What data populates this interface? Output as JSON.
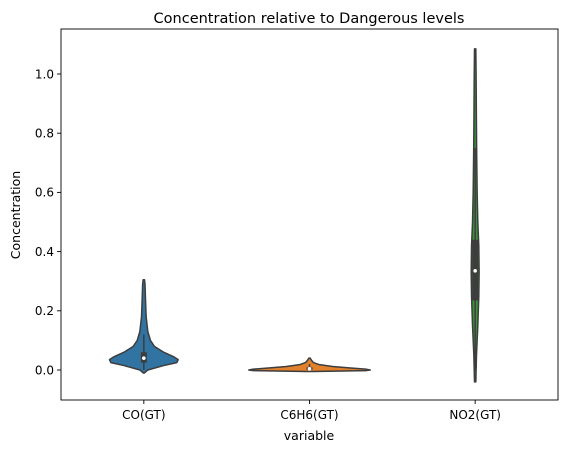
{
  "chart_data": {
    "type": "violin",
    "title": "Concentration relative to Dangerous levels",
    "xlabel": "variable",
    "ylabel": "Concentration",
    "ylim": [
      -0.1,
      1.15
    ],
    "yticks": [
      "0.0",
      "0.2",
      "0.4",
      "0.6",
      "0.8",
      "1.0"
    ],
    "ytick_values": [
      0.0,
      0.2,
      0.4,
      0.6,
      0.8,
      1.0
    ],
    "categories": [
      "CO(GT)",
      "C6H6(GT)",
      "NO2(GT)"
    ],
    "grid": false,
    "legend": "none",
    "series": [
      {
        "category": "CO(GT)",
        "color": "#3274a1",
        "min": -0.01,
        "max": 0.305,
        "q1": 0.025,
        "median": 0.04,
        "q3": 0.06,
        "whisker_low": 0.0,
        "whisker_high": 0.12,
        "density": [
          [
            -0.01,
            0.01
          ],
          [
            0.0,
            0.06
          ],
          [
            0.015,
            0.3
          ],
          [
            0.025,
            0.5
          ],
          [
            0.035,
            0.52
          ],
          [
            0.045,
            0.45
          ],
          [
            0.06,
            0.3
          ],
          [
            0.08,
            0.16
          ],
          [
            0.1,
            0.1
          ],
          [
            0.13,
            0.06
          ],
          [
            0.18,
            0.035
          ],
          [
            0.24,
            0.025
          ],
          [
            0.29,
            0.018
          ],
          [
            0.305,
            0.01
          ]
        ]
      },
      {
        "category": "C6H6(GT)",
        "color": "#e1812c",
        "min": -0.005,
        "max": 0.04,
        "q1": 0.001,
        "median": 0.004,
        "q3": 0.009,
        "whisker_low": 0.0,
        "whisker_high": 0.02,
        "density": [
          [
            -0.005,
            0.05
          ],
          [
            -0.002,
            0.85
          ],
          [
            0.0,
            0.92
          ],
          [
            0.003,
            0.85
          ],
          [
            0.007,
            0.6
          ],
          [
            0.012,
            0.35
          ],
          [
            0.018,
            0.15
          ],
          [
            0.025,
            0.06
          ],
          [
            0.033,
            0.03
          ],
          [
            0.04,
            0.01
          ]
        ]
      },
      {
        "category": "NO2(GT)",
        "color": "#3a923a",
        "min": -0.04,
        "max": 1.085,
        "q1": 0.235,
        "median": 0.335,
        "q3": 0.44,
        "whisker_low": 0.0,
        "whisker_high": 0.75,
        "density": [
          [
            -0.04,
            0.01
          ],
          [
            0.05,
            0.02
          ],
          [
            0.15,
            0.04
          ],
          [
            0.25,
            0.055
          ],
          [
            0.33,
            0.06
          ],
          [
            0.42,
            0.055
          ],
          [
            0.5,
            0.04
          ],
          [
            0.6,
            0.03
          ],
          [
            0.75,
            0.022
          ],
          [
            0.9,
            0.017
          ],
          [
            1.0,
            0.014
          ],
          [
            1.085,
            0.01
          ]
        ]
      }
    ]
  }
}
